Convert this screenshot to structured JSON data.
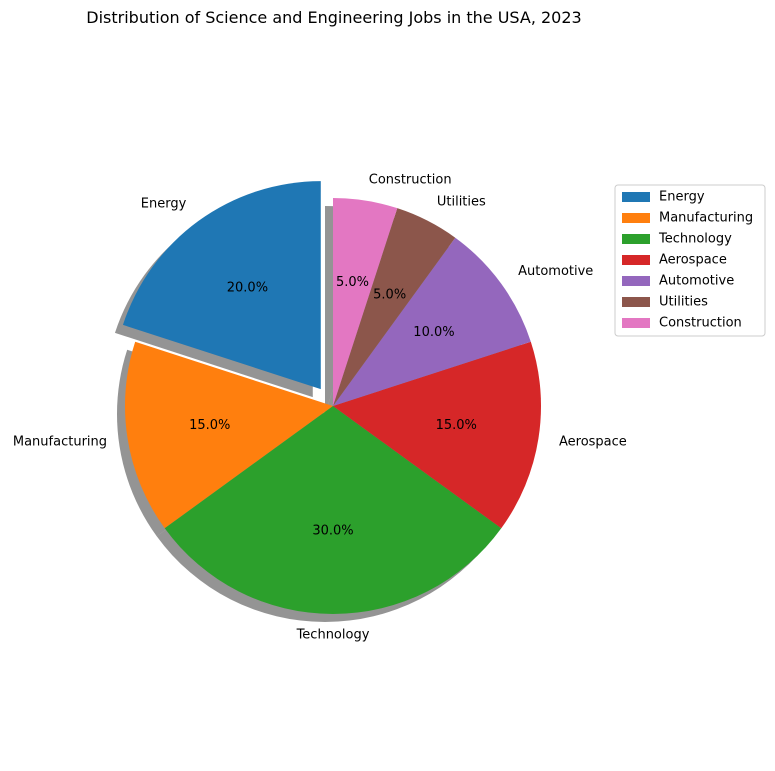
{
  "chart_data": {
    "type": "pie",
    "title": "Distribution of Science and Engineering Jobs in the USA, 2023",
    "categories": [
      "Energy",
      "Manufacturing",
      "Technology",
      "Aerospace",
      "Automotive",
      "Utilities",
      "Construction"
    ],
    "values": [
      20.0,
      15.0,
      30.0,
      15.0,
      10.0,
      5.0,
      5.0
    ],
    "value_labels": [
      "20.0%",
      "15.0%",
      "30.0%",
      "15.0%",
      "10.0%",
      "5.0%",
      "5.0%"
    ],
    "colors": [
      "#1f77b4",
      "#ff7f0e",
      "#2ca02c",
      "#d62728",
      "#9467bd",
      "#8c564b",
      "#e377c2"
    ],
    "start_angle_deg": 90,
    "direction": "counterclockwise",
    "exploded": [
      "Energy"
    ],
    "shadow": true,
    "legend": {
      "placement": "right",
      "entries": [
        "Energy",
        "Manufacturing",
        "Technology",
        "Aerospace",
        "Automotive",
        "Utilities",
        "Construction"
      ]
    }
  }
}
